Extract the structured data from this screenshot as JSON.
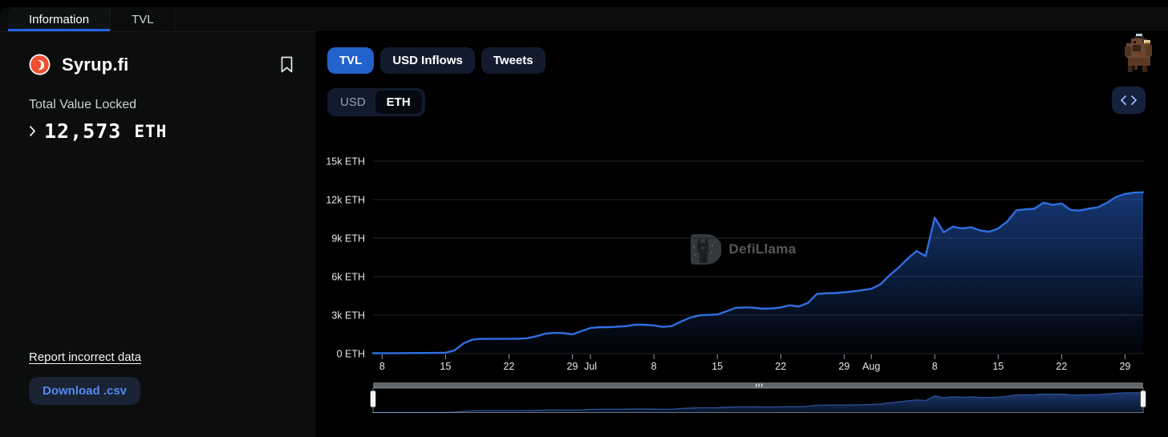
{
  "page_tabs": [
    {
      "label": "Information",
      "active": true
    },
    {
      "label": "TVL",
      "active": false
    }
  ],
  "sidebar": {
    "protocol_name": "Syrup.fi",
    "tvl_label": "Total Value Locked",
    "tvl_value": "12,573",
    "tvl_unit": "ETH",
    "report_link": "Report incorrect data",
    "download_button": "Download .csv"
  },
  "toolbar": {
    "chart_tabs": [
      {
        "label": "TVL",
        "active": true
      },
      {
        "label": "USD Inflows",
        "active": false
      },
      {
        "label": "Tweets",
        "active": false
      }
    ],
    "denomination": {
      "options": [
        {
          "label": "USD",
          "selected": false
        },
        {
          "label": "ETH",
          "selected": true
        }
      ]
    },
    "embed_icon": "code-icon"
  },
  "watermark": {
    "text": "DefiLlama"
  },
  "colors": {
    "accent_blue": "#2361cd",
    "tab_underline": "#2663eb",
    "line_blue": "#2f6fe0",
    "area_blue": "#2663d0",
    "download_text": "#5589ee",
    "logo_orange": "#f1502f",
    "panel_bg": "#000000",
    "sidebar_bg": "#0b0e0d"
  },
  "chart_data": {
    "type": "area",
    "title": "Total Value Locked (ETH)",
    "unit": "ETH",
    "grid": true,
    "legend_position": "none",
    "ylim": [
      0,
      15000
    ],
    "y_ticks": [
      {
        "label": "0 ETH",
        "value": 0
      },
      {
        "label": "3k ETH",
        "value": 3000
      },
      {
        "label": "6k ETH",
        "value": 6000
      },
      {
        "label": "9k ETH",
        "value": 9000
      },
      {
        "label": "12k ETH",
        "value": 12000
      },
      {
        "label": "15k ETH",
        "value": 15000
      }
    ],
    "x_range": [
      "Jun 7",
      "Aug 31"
    ],
    "x_ticks": [
      {
        "label": "8",
        "date": "Jun 8"
      },
      {
        "label": "15",
        "date": "Jun 15"
      },
      {
        "label": "22",
        "date": "Jun 22"
      },
      {
        "label": "29",
        "date": "Jun 29"
      },
      {
        "label": "Jul",
        "date": "Jul 1"
      },
      {
        "label": "8",
        "date": "Jul 8"
      },
      {
        "label": "15",
        "date": "Jul 15"
      },
      {
        "label": "22",
        "date": "Jul 22"
      },
      {
        "label": "29",
        "date": "Jul 29"
      },
      {
        "label": "Aug",
        "date": "Aug 1"
      },
      {
        "label": "8",
        "date": "Aug 8"
      },
      {
        "label": "15",
        "date": "Aug 15"
      },
      {
        "label": "22",
        "date": "Aug 22"
      },
      {
        "label": "29",
        "date": "Aug 29"
      }
    ],
    "series": [
      {
        "name": "TVL",
        "unit": "ETH",
        "points": [
          [
            "Jun 7",
            30
          ],
          [
            "Jun 10",
            40
          ],
          [
            "Jun 13",
            50
          ],
          [
            "Jun 15",
            60
          ],
          [
            "Jun 16",
            250
          ],
          [
            "Jun 17",
            800
          ],
          [
            "Jun 18",
            1100
          ],
          [
            "Jun 19",
            1150
          ],
          [
            "Jun 21",
            1150
          ],
          [
            "Jun 23",
            1160
          ],
          [
            "Jun 24",
            1200
          ],
          [
            "Jun 25",
            1350
          ],
          [
            "Jun 26",
            1550
          ],
          [
            "Jun 27",
            1620
          ],
          [
            "Jun 28",
            1600
          ],
          [
            "Jun 29",
            1500
          ],
          [
            "Jun 30",
            1750
          ],
          [
            "Jul 1",
            2000
          ],
          [
            "Jul 2",
            2060
          ],
          [
            "Jul 3",
            2060
          ],
          [
            "Jul 4",
            2100
          ],
          [
            "Jul 5",
            2150
          ],
          [
            "Jul 6",
            2250
          ],
          [
            "Jul 7",
            2250
          ],
          [
            "Jul 8",
            2200
          ],
          [
            "Jul 9",
            2080
          ],
          [
            "Jul 10",
            2150
          ],
          [
            "Jul 11",
            2500
          ],
          [
            "Jul 12",
            2800
          ],
          [
            "Jul 13",
            2980
          ],
          [
            "Jul 14",
            3020
          ],
          [
            "Jul 15",
            3050
          ],
          [
            "Jul 16",
            3300
          ],
          [
            "Jul 17",
            3560
          ],
          [
            "Jul 18",
            3600
          ],
          [
            "Jul 19",
            3580
          ],
          [
            "Jul 20",
            3500
          ],
          [
            "Jul 21",
            3520
          ],
          [
            "Jul 22",
            3600
          ],
          [
            "Jul 23",
            3770
          ],
          [
            "Jul 24",
            3670
          ],
          [
            "Jul 25",
            3950
          ],
          [
            "Jul 26",
            4650
          ],
          [
            "Jul 27",
            4700
          ],
          [
            "Jul 28",
            4720
          ],
          [
            "Jul 29",
            4780
          ],
          [
            "Jul 30",
            4850
          ],
          [
            "Jul 31",
            4950
          ],
          [
            "Aug 1",
            5050
          ],
          [
            "Aug 2",
            5400
          ],
          [
            "Aug 3",
            6100
          ],
          [
            "Aug 4",
            6700
          ],
          [
            "Aug 5",
            7400
          ],
          [
            "Aug 6",
            8000
          ],
          [
            "Aug 7",
            7600
          ],
          [
            "Aug 8",
            10600
          ],
          [
            "Aug 9",
            9450
          ],
          [
            "Aug 10",
            9900
          ],
          [
            "Aug 11",
            9750
          ],
          [
            "Aug 12",
            9850
          ],
          [
            "Aug 13",
            9600
          ],
          [
            "Aug 14",
            9500
          ],
          [
            "Aug 15",
            9750
          ],
          [
            "Aug 16",
            10300
          ],
          [
            "Aug 17",
            11170
          ],
          [
            "Aug 18",
            11250
          ],
          [
            "Aug 19",
            11300
          ],
          [
            "Aug 20",
            11770
          ],
          [
            "Aug 21",
            11600
          ],
          [
            "Aug 22",
            11700
          ],
          [
            "Aug 23",
            11200
          ],
          [
            "Aug 24",
            11150
          ],
          [
            "Aug 25",
            11300
          ],
          [
            "Aug 26",
            11400
          ],
          [
            "Aug 27",
            11750
          ],
          [
            "Aug 28",
            12200
          ],
          [
            "Aug 29",
            12450
          ],
          [
            "Aug 30",
            12550
          ],
          [
            "Aug 31",
            12573
          ]
        ]
      }
    ],
    "brush": {
      "selected_range": [
        "Jun 7",
        "Aug 31"
      ]
    }
  }
}
